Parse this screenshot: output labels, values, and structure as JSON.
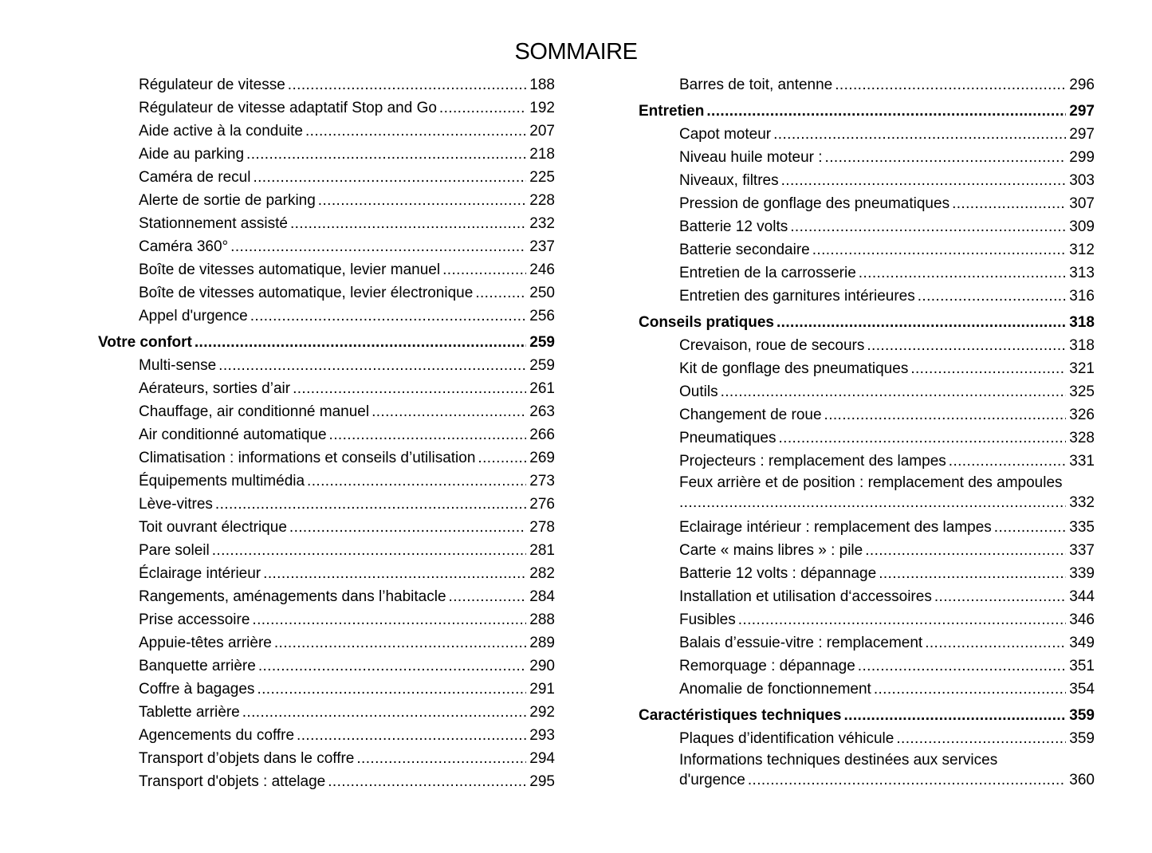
{
  "title": "SOMMAIRE",
  "left": [
    {
      "label": "Régulateur de vitesse",
      "page": "188"
    },
    {
      "label": "Régulateur de vitesse adaptatif Stop and Go",
      "page": "192"
    },
    {
      "label": "Aide active à la conduite",
      "page": "207"
    },
    {
      "label": "Aide au parking",
      "page": "218"
    },
    {
      "label": "Caméra de recul",
      "page": "225"
    },
    {
      "label": "Alerte de sortie de parking",
      "page": "228"
    },
    {
      "label": "Stationnement assisté",
      "page": "232"
    },
    {
      "label": "Caméra 360°",
      "page": "237"
    },
    {
      "label": "Boîte de vitesses automatique, levier manuel",
      "page": "246"
    },
    {
      "label": "Boîte de vitesses automatique, levier électronique",
      "page": "250"
    },
    {
      "label": "Appel d'urgence",
      "page": "256"
    },
    {
      "label": "Votre confort",
      "page": "259",
      "section": true
    },
    {
      "label": "Multi-sense",
      "page": "259"
    },
    {
      "label": "Aérateurs, sorties d’air",
      "page": "261"
    },
    {
      "label": "Chauffage, air conditionné manuel",
      "page": "263"
    },
    {
      "label": "Air conditionné automatique",
      "page": "266"
    },
    {
      "label": "Climatisation : informations et conseils d’utilisation",
      "page": "269"
    },
    {
      "label": "Équipements multimédia",
      "page": "273"
    },
    {
      "label": "Lève-vitres",
      "page": "276"
    },
    {
      "label": "Toit ouvrant électrique",
      "page": "278"
    },
    {
      "label": "Pare soleil",
      "page": "281"
    },
    {
      "label": "Éclairage intérieur",
      "page": "282"
    },
    {
      "label": "Rangements, aménagements dans l’habitacle",
      "page": "284"
    },
    {
      "label": "Prise accessoire",
      "page": "288"
    },
    {
      "label": "Appuie-têtes arrière",
      "page": "289"
    },
    {
      "label": "Banquette arrière",
      "page": "290"
    },
    {
      "label": "Coffre à bagages",
      "page": "291"
    },
    {
      "label": "Tablette arrière",
      "page": "292"
    },
    {
      "label": "Agencements du coffre",
      "page": "293"
    },
    {
      "label": "Transport d’objets dans le coffre",
      "page": "294"
    },
    {
      "label": "Transport d'objets : attelage",
      "page": "295"
    }
  ],
  "right": [
    {
      "label": "Barres de toit, antenne",
      "page": "296"
    },
    {
      "label": "Entretien",
      "page": "297",
      "section": true
    },
    {
      "label": "Capot moteur",
      "page": "297"
    },
    {
      "label": "Niveau huile moteur :",
      "page": "299"
    },
    {
      "label": "Niveaux, filtres",
      "page": "303"
    },
    {
      "label": "Pression de gonflage des pneumatiques",
      "page": "307"
    },
    {
      "label": "Batterie 12 volts",
      "page": "309"
    },
    {
      "label": "Batterie secondaire",
      "page": "312"
    },
    {
      "label": "Entretien de la carrosserie",
      "page": "313"
    },
    {
      "label": "Entretien des garnitures intérieures",
      "page": "316"
    },
    {
      "label": "Conseils pratiques",
      "page": "318",
      "section": true
    },
    {
      "label": "Crevaison, roue de secours",
      "page": "318"
    },
    {
      "label": "Kit de gonflage des pneumatiques",
      "page": "321"
    },
    {
      "label": "Outils",
      "page": "325"
    },
    {
      "label": "Changement de roue",
      "page": "326"
    },
    {
      "label": "Pneumatiques",
      "page": "328"
    },
    {
      "label": "Projecteurs : remplacement des lampes",
      "page": "331"
    },
    {
      "label": "Feux arrière et de position : remplacement des ampoules",
      "cont": "",
      "page": "332",
      "wrap": true
    },
    {
      "label": "Eclairage intérieur : remplacement des lampes",
      "page": "335"
    },
    {
      "label": "Carte « mains libres » : pile",
      "page": "337"
    },
    {
      "label": "Batterie 12 volts : dépannage",
      "page": "339"
    },
    {
      "label": "Installation et utilisation d‘accessoires",
      "page": "344"
    },
    {
      "label": "Fusibles",
      "page": "346"
    },
    {
      "label": "Balais d’essuie-vitre : remplacement",
      "page": "349"
    },
    {
      "label": "Remorquage : dépannage",
      "page": "351"
    },
    {
      "label": "Anomalie de fonctionnement",
      "page": "354"
    },
    {
      "label": "Caractéristiques techniques",
      "page": "359",
      "section": true
    },
    {
      "label": "Plaques d’identification véhicule",
      "page": "359"
    },
    {
      "label": "Informations techniques destinées aux services",
      "cont": "d'urgence",
      "page": "360",
      "wrap": true
    }
  ]
}
